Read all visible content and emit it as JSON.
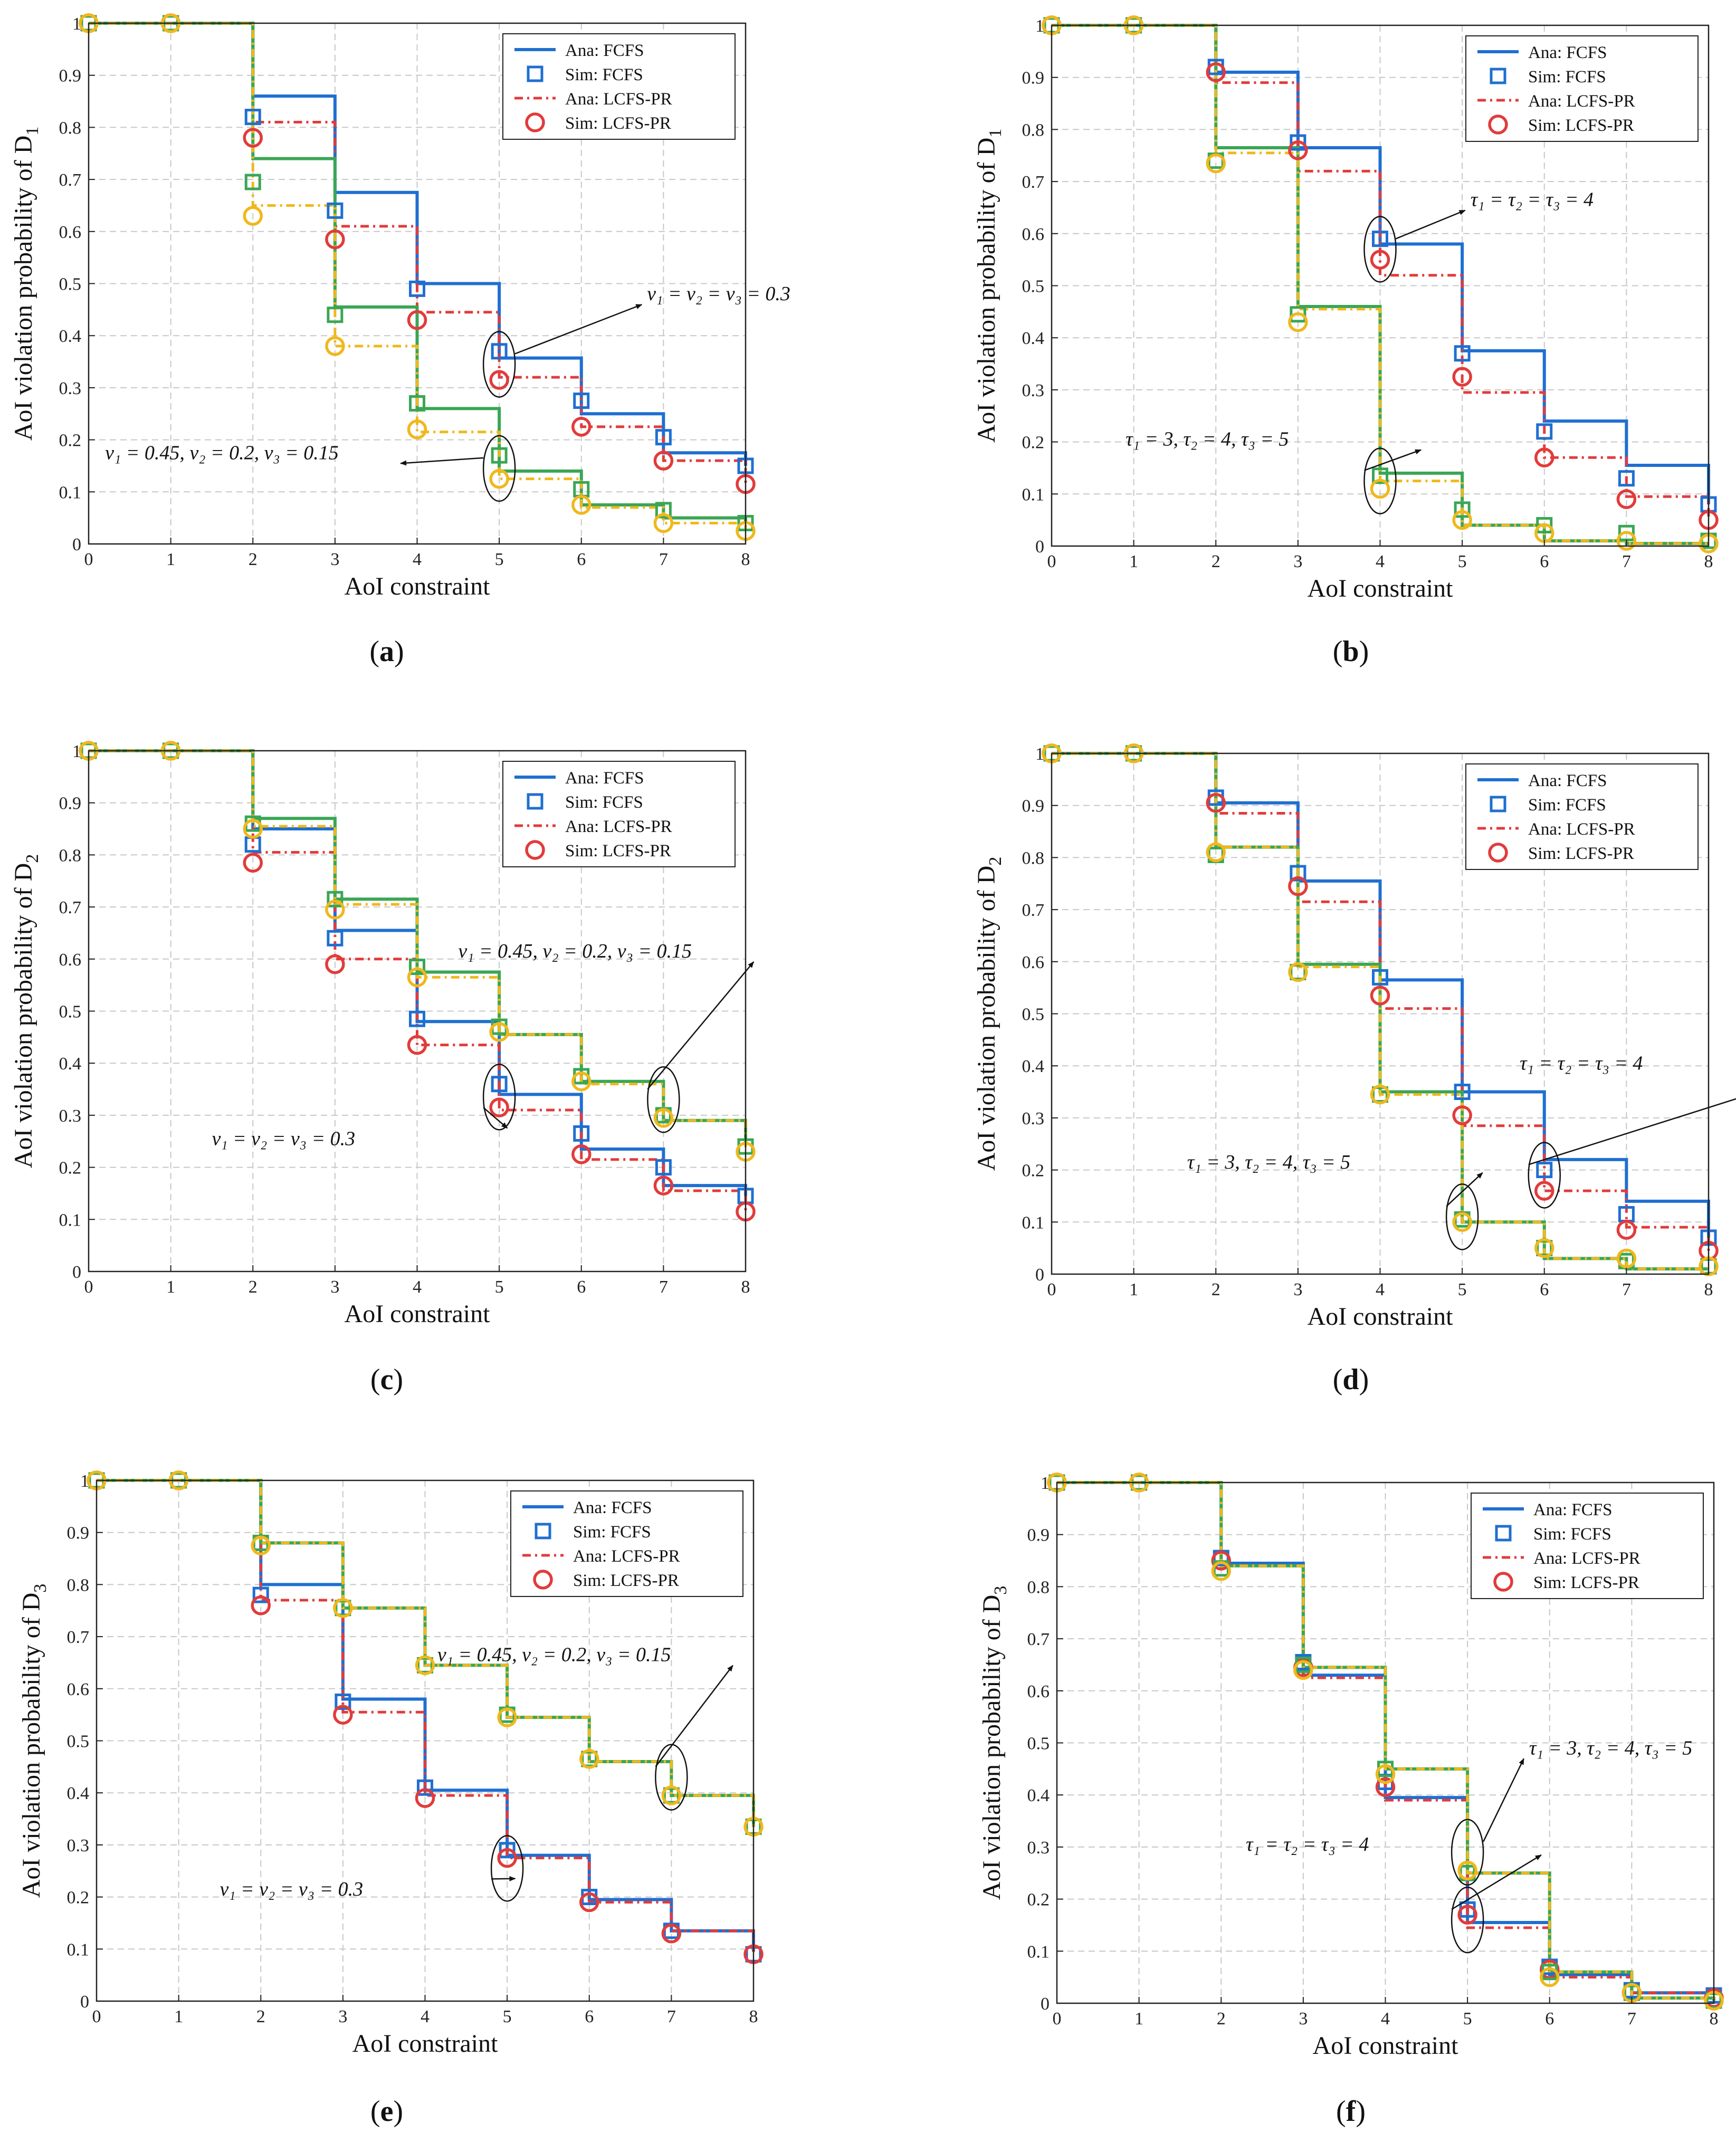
{
  "colors": {
    "blue": "#1f6fd1",
    "red": "#e23b3b",
    "green": "#3aa655",
    "yellow": "#f0b81c",
    "grid": "#c8c8c8",
    "axis": "#222222"
  },
  "legend": {
    "entries": [
      {
        "label": "Ana:  FCFS",
        "kind": "line-solid",
        "color": "blue"
      },
      {
        "label": "Sim:  FCFS",
        "kind": "square",
        "color": "blue"
      },
      {
        "label": "Ana:  LCFS-PR",
        "kind": "line-dash",
        "color": "red"
      },
      {
        "label": "Sim:  LCFS-PR",
        "kind": "circle",
        "color": "red"
      }
    ]
  },
  "chart_data": [
    {
      "id": "a",
      "caption": "a",
      "type": "line",
      "xlabel": "AoI constraint",
      "ylabel_prefix": "AoI violation probability of D",
      "ylabel_sub": "1",
      "x": [
        0,
        1,
        2,
        3,
        4,
        5,
        6,
        7,
        8
      ],
      "xlim": [
        0,
        8
      ],
      "ylim": [
        0,
        1
      ],
      "xticks": [
        "0",
        "1",
        "2",
        "3",
        "4",
        "5",
        "6",
        "7",
        "8"
      ],
      "yticks": [
        "0",
        "0.1",
        "0.2",
        "0.3",
        "0.4",
        "0.5",
        "0.6",
        "0.7",
        "0.8",
        "0.9",
        "1"
      ],
      "series": [
        {
          "name": "Ana: FCFS (case 1)",
          "color": "blue",
          "dash": false,
          "marker": "square",
          "values": [
            1,
            1,
            0.86,
            0.675,
            0.5,
            0.357,
            0.25,
            0.175,
            0.15
          ],
          "sim": [
            1,
            1,
            0.82,
            0.64,
            0.49,
            0.37,
            0.275,
            0.205,
            0.15
          ]
        },
        {
          "name": "Ana: LCFS-PR (case 1)",
          "color": "red",
          "dash": true,
          "marker": "circle",
          "values": [
            1,
            1,
            0.81,
            0.61,
            0.445,
            0.32,
            0.225,
            0.16,
            0.115
          ],
          "sim": [
            1,
            1,
            0.78,
            0.585,
            0.43,
            0.315,
            0.225,
            0.16,
            0.115
          ]
        },
        {
          "name": "Ana: FCFS (case 2)",
          "color": "green",
          "dash": false,
          "marker": "square",
          "values": [
            1,
            1,
            0.74,
            0.455,
            0.26,
            0.14,
            0.075,
            0.05,
            0.04
          ],
          "sim": [
            1,
            1,
            0.695,
            0.44,
            0.27,
            0.17,
            0.105,
            0.065,
            0.04
          ]
        },
        {
          "name": "Ana: LCFS-PR (case 2)",
          "color": "yellow",
          "dash": true,
          "marker": "circle",
          "values": [
            1,
            1,
            0.65,
            0.38,
            0.215,
            0.125,
            0.07,
            0.04,
            0.025
          ],
          "sim": [
            1,
            1,
            0.63,
            0.38,
            0.22,
            0.125,
            0.075,
            0.04,
            0.025
          ]
        }
      ],
      "annotations": [
        {
          "text": "ν₁ = ν₂ = ν₃ = 0.3",
          "ex": 5,
          "ey": 0.345,
          "tx": 6.8,
          "ty": 0.48
        },
        {
          "text": "ν₁ = 0.45, ν₂ = 0.2, ν₃ = 0.15",
          "ex": 5,
          "ey": 0.145,
          "tx": 0.2,
          "ty": 0.175
        }
      ]
    },
    {
      "id": "b",
      "caption": "b",
      "type": "line",
      "xlabel": "AoI constraint",
      "ylabel_prefix": "AoI violation probability of D",
      "ylabel_sub": "1",
      "x": [
        0,
        1,
        2,
        3,
        4,
        5,
        6,
        7,
        8
      ],
      "xlim": [
        0,
        8
      ],
      "ylim": [
        0,
        1
      ],
      "xticks": [
        "0",
        "1",
        "2",
        "3",
        "4",
        "5",
        "6",
        "7",
        "8"
      ],
      "yticks": [
        "0",
        "0.1",
        "0.2",
        "0.3",
        "0.4",
        "0.5",
        "0.6",
        "0.7",
        "0.8",
        "0.9",
        "1"
      ],
      "series": [
        {
          "name": "Ana: FCFS (case 1)",
          "color": "blue",
          "dash": false,
          "marker": "square",
          "values": [
            1,
            1,
            0.91,
            0.765,
            0.58,
            0.375,
            0.24,
            0.155,
            0.08
          ],
          "sim": [
            1,
            1,
            0.92,
            0.775,
            0.59,
            0.37,
            0.22,
            0.13,
            0.08
          ]
        },
        {
          "name": "Ana: LCFS-PR (case 1)",
          "color": "red",
          "dash": true,
          "marker": "circle",
          "values": [
            1,
            1,
            0.89,
            0.72,
            0.52,
            0.295,
            0.17,
            0.095,
            0.05
          ],
          "sim": [
            1,
            1,
            0.91,
            0.76,
            0.55,
            0.325,
            0.17,
            0.09,
            0.05
          ]
        },
        {
          "name": "Ana: FCFS (case 2)",
          "color": "green",
          "dash": false,
          "marker": "square",
          "values": [
            1,
            1,
            0.765,
            0.46,
            0.14,
            0.04,
            0.01,
            0.005,
            0.005
          ],
          "sim": [
            1,
            1,
            0.74,
            0.445,
            0.135,
            0.07,
            0.04,
            0.025,
            0.01
          ]
        },
        {
          "name": "Ana: LCFS-PR (case 2)",
          "color": "yellow",
          "dash": true,
          "marker": "circle",
          "values": [
            1,
            1,
            0.755,
            0.455,
            0.125,
            0.04,
            0.01,
            0.005,
            0.005
          ],
          "sim": [
            1,
            1,
            0.735,
            0.43,
            0.11,
            0.05,
            0.025,
            0.01,
            0.005
          ]
        }
      ],
      "annotations": [
        {
          "text": "τ₁ = τ₂ = τ₃ = 4",
          "ex": 4,
          "ey": 0.57,
          "tx": 5.1,
          "ty": 0.665
        },
        {
          "text": "τ₁ = 3, τ₂ = 4, τ₃ = 5",
          "ex": 4,
          "ey": 0.125,
          "tx": 0.9,
          "ty": 0.205
        }
      ]
    },
    {
      "id": "c",
      "caption": "c",
      "type": "line",
      "xlabel": "AoI constraint",
      "ylabel_prefix": "AoI violation probability of D",
      "ylabel_sub": "2",
      "x": [
        0,
        1,
        2,
        3,
        4,
        5,
        6,
        7,
        8
      ],
      "xlim": [
        0,
        8
      ],
      "ylim": [
        0,
        1
      ],
      "xticks": [
        "0",
        "1",
        "2",
        "3",
        "4",
        "5",
        "6",
        "7",
        "8"
      ],
      "yticks": [
        "0",
        "0.1",
        "0.2",
        "0.3",
        "0.4",
        "0.5",
        "0.6",
        "0.7",
        "0.8",
        "0.9",
        "1"
      ],
      "series": [
        {
          "name": "Ana: FCFS (case 1)",
          "color": "blue",
          "dash": false,
          "marker": "square",
          "values": [
            1,
            1,
            0.85,
            0.655,
            0.48,
            0.34,
            0.235,
            0.165,
            0.145
          ],
          "sim": [
            1,
            1,
            0.82,
            0.64,
            0.485,
            0.36,
            0.265,
            0.2,
            0.145
          ]
        },
        {
          "name": "Ana: LCFS-PR (case 1)",
          "color": "red",
          "dash": true,
          "marker": "circle",
          "values": [
            1,
            1,
            0.805,
            0.6,
            0.435,
            0.31,
            0.215,
            0.155,
            0.115
          ],
          "sim": [
            1,
            1,
            0.785,
            0.59,
            0.435,
            0.315,
            0.225,
            0.165,
            0.115
          ]
        },
        {
          "name": "Ana: FCFS (case 2)",
          "color": "green",
          "dash": false,
          "marker": "square",
          "values": [
            1,
            1,
            0.87,
            0.715,
            0.575,
            0.455,
            0.365,
            0.29,
            0.245
          ],
          "sim": [
            1,
            1,
            0.86,
            0.715,
            0.585,
            0.47,
            0.375,
            0.3,
            0.24
          ]
        },
        {
          "name": "Ana: LCFS-PR (case 2)",
          "color": "yellow",
          "dash": true,
          "marker": "circle",
          "values": [
            1,
            1,
            0.855,
            0.705,
            0.565,
            0.455,
            0.36,
            0.29,
            0.235
          ],
          "sim": [
            1,
            1,
            0.85,
            0.695,
            0.565,
            0.46,
            0.365,
            0.295,
            0.23
          ]
        }
      ],
      "annotations": [
        {
          "text": "ν₁ = 0.45, ν₂ = 0.2, ν₃ = 0.15",
          "ex": 7,
          "ey": 0.33,
          "tx": 4.5,
          "ty": 0.615
        },
        {
          "text": "ν₁ = ν₂ = ν₃ = 0.3",
          "ex": 5,
          "ey": 0.335,
          "tx": 1.5,
          "ty": 0.255
        }
      ]
    },
    {
      "id": "d",
      "caption": "d",
      "type": "line",
      "xlabel": "AoI constraint",
      "ylabel_prefix": "AoI violation probability of D",
      "ylabel_sub": "2",
      "x": [
        0,
        1,
        2,
        3,
        4,
        5,
        6,
        7,
        8
      ],
      "xlim": [
        0,
        8
      ],
      "ylim": [
        0,
        1
      ],
      "xticks": [
        "0",
        "1",
        "2",
        "3",
        "4",
        "5",
        "6",
        "7",
        "8"
      ],
      "yticks": [
        "0",
        "0.1",
        "0.2",
        "0.3",
        "0.4",
        "0.5",
        "0.6",
        "0.7",
        "0.8",
        "0.9",
        "1"
      ],
      "series": [
        {
          "name": "Ana: FCFS (case 1)",
          "color": "blue",
          "dash": false,
          "marker": "square",
          "values": [
            1,
            1,
            0.905,
            0.755,
            0.565,
            0.35,
            0.22,
            0.14,
            0.07
          ],
          "sim": [
            1,
            1,
            0.915,
            0.77,
            0.57,
            0.35,
            0.2,
            0.115,
            0.07
          ]
        },
        {
          "name": "Ana: LCFS-PR (case 1)",
          "color": "red",
          "dash": true,
          "marker": "circle",
          "values": [
            1,
            1,
            0.885,
            0.715,
            0.51,
            0.285,
            0.16,
            0.09,
            0.045
          ],
          "sim": [
            1,
            1,
            0.905,
            0.745,
            0.535,
            0.305,
            0.16,
            0.085,
            0.045
          ]
        },
        {
          "name": "Ana: FCFS (case 2)",
          "color": "green",
          "dash": false,
          "marker": "square",
          "values": [
            1,
            1,
            0.82,
            0.595,
            0.35,
            0.1,
            0.03,
            0.01,
            0.01
          ],
          "sim": [
            1,
            1,
            0.805,
            0.58,
            0.345,
            0.105,
            0.05,
            0.025,
            0.015
          ]
        },
        {
          "name": "Ana: LCFS-PR (case 2)",
          "color": "yellow",
          "dash": true,
          "marker": "circle",
          "values": [
            1,
            1,
            0.82,
            0.59,
            0.345,
            0.1,
            0.03,
            0.01,
            0.01
          ],
          "sim": [
            1,
            1,
            0.81,
            0.58,
            0.345,
            0.1,
            0.05,
            0.03,
            0.015
          ]
        }
      ],
      "annotations": [
        {
          "text": "τ₁ = τ₂ = τ₃ = 4",
          "ex": 6,
          "ey": 0.19,
          "tx": 5.7,
          "ty": 0.405
        },
        {
          "text": "τ₁ = 3, τ₂ = 4, τ₃ = 5",
          "ex": 5,
          "ey": 0.11,
          "tx": 1.65,
          "ty": 0.215
        }
      ]
    },
    {
      "id": "e",
      "caption": "e",
      "type": "line",
      "xlabel": "AoI constraint",
      "ylabel_prefix": "AoI violation probability of D",
      "ylabel_sub": "3",
      "x": [
        0,
        1,
        2,
        3,
        4,
        5,
        6,
        7,
        8
      ],
      "xlim": [
        0,
        8
      ],
      "ylim": [
        0,
        1
      ],
      "xticks": [
        "0",
        "1",
        "2",
        "3",
        "4",
        "5",
        "6",
        "7",
        "8"
      ],
      "yticks": [
        "0",
        "0.1",
        "0.2",
        "0.3",
        "0.4",
        "0.5",
        "0.6",
        "0.7",
        "0.8",
        "0.9",
        "1"
      ],
      "series": [
        {
          "name": "Ana: FCFS (case 1)",
          "color": "blue",
          "dash": false,
          "marker": "square",
          "values": [
            1,
            1,
            0.8,
            0.58,
            0.405,
            0.28,
            0.195,
            0.135,
            0.095
          ],
          "sim": [
            1,
            1,
            0.78,
            0.575,
            0.41,
            0.29,
            0.2,
            0.135,
            0.09
          ]
        },
        {
          "name": "Ana: LCFS-PR (case 1)",
          "color": "red",
          "dash": true,
          "marker": "circle",
          "values": [
            1,
            1,
            0.77,
            0.555,
            0.395,
            0.275,
            0.19,
            0.135,
            0.095
          ],
          "sim": [
            1,
            1,
            0.76,
            0.55,
            0.39,
            0.275,
            0.19,
            0.13,
            0.09
          ]
        },
        {
          "name": "Ana: FCFS (case 2)",
          "color": "green",
          "dash": false,
          "marker": "square",
          "values": [
            1,
            1,
            0.88,
            0.755,
            0.645,
            0.545,
            0.46,
            0.395,
            0.335
          ],
          "sim": [
            1,
            1,
            0.88,
            0.755,
            0.645,
            0.55,
            0.465,
            0.395,
            0.335
          ]
        },
        {
          "name": "Ana: LCFS-PR (case 2)",
          "color": "yellow",
          "dash": true,
          "marker": "circle",
          "values": [
            1,
            1,
            0.88,
            0.755,
            0.645,
            0.545,
            0.46,
            0.395,
            0.335
          ],
          "sim": [
            1,
            1,
            0.875,
            0.755,
            0.645,
            0.545,
            0.465,
            0.395,
            0.335
          ]
        }
      ],
      "annotations": [
        {
          "text": "ν₁ = 0.45, ν₂ = 0.2, ν₃ = 0.15",
          "ex": 7,
          "ey": 0.43,
          "tx": 4.15,
          "ty": 0.665
        },
        {
          "text": "ν₁ = ν₂ = ν₃ = 0.3",
          "ex": 5,
          "ey": 0.255,
          "tx": 1.5,
          "ty": 0.215
        }
      ]
    },
    {
      "id": "f",
      "caption": "f",
      "type": "line",
      "xlabel": "AoI constraint",
      "ylabel_prefix": "AoI violation probability of D",
      "ylabel_sub": "3",
      "x": [
        0,
        1,
        2,
        3,
        4,
        5,
        6,
        7,
        8
      ],
      "xlim": [
        0,
        8
      ],
      "ylim": [
        0,
        1
      ],
      "xticks": [
        "0",
        "1",
        "2",
        "3",
        "4",
        "5",
        "6",
        "7",
        "8"
      ],
      "yticks": [
        "0",
        "0.1",
        "0.2",
        "0.3",
        "0.4",
        "0.5",
        "0.6",
        "0.7",
        "0.8",
        "0.9",
        "1"
      ],
      "series": [
        {
          "name": "Ana: FCFS (case 1)",
          "color": "blue",
          "dash": false,
          "marker": "square",
          "values": [
            1,
            1,
            0.845,
            0.63,
            0.395,
            0.155,
            0.055,
            0.02,
            0.02
          ],
          "sim": [
            1,
            1,
            0.855,
            0.655,
            0.425,
            0.18,
            0.07,
            0.025,
            0.015
          ]
        },
        {
          "name": "Ana: LCFS-PR (case 1)",
          "color": "red",
          "dash": true,
          "marker": "circle",
          "values": [
            1,
            1,
            0.84,
            0.625,
            0.39,
            0.145,
            0.05,
            0.02,
            0.02
          ],
          "sim": [
            1,
            1,
            0.85,
            0.645,
            0.415,
            0.17,
            0.065,
            0.02,
            0.01
          ]
        },
        {
          "name": "Ana: FCFS (case 2)",
          "color": "green",
          "dash": false,
          "marker": "square",
          "values": [
            1,
            1,
            0.84,
            0.645,
            0.45,
            0.25,
            0.06,
            0.01,
            0.005
          ],
          "sim": [
            1,
            1,
            0.835,
            0.65,
            0.45,
            0.25,
            0.06,
            0.02,
            0.005
          ]
        },
        {
          "name": "Ana: LCFS-PR (case 2)",
          "color": "yellow",
          "dash": true,
          "marker": "circle",
          "values": [
            1,
            1,
            0.84,
            0.645,
            0.45,
            0.25,
            0.06,
            0.01,
            0.005
          ],
          "sim": [
            1,
            1,
            0.83,
            0.64,
            0.44,
            0.255,
            0.05,
            0.02,
            0.005
          ]
        }
      ],
      "annotations": [
        {
          "text": "τ₁ = 3, τ₂ = 4, τ₃ = 5",
          "ex": 5,
          "ey": 0.29,
          "tx": 5.75,
          "ty": 0.49
        },
        {
          "text": "τ₁ = τ₂ = τ₃ = 4",
          "ex": 5,
          "ey": 0.16,
          "tx": 2.3,
          "ty": 0.305
        }
      ]
    }
  ]
}
